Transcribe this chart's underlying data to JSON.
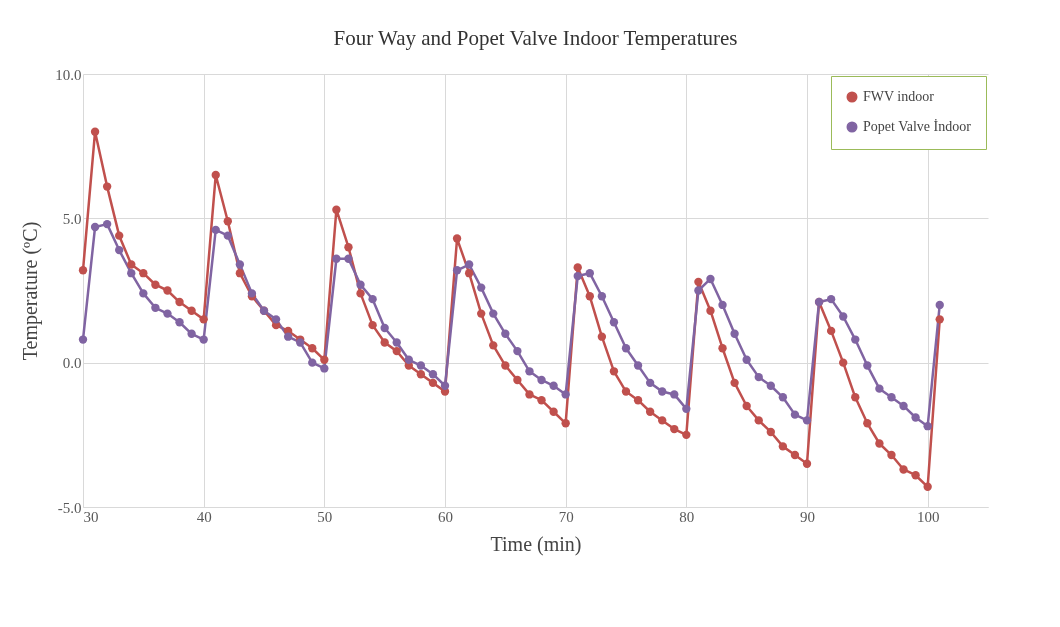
{
  "chart_data": {
    "type": "line",
    "title": "Four Way and Popet Valve  Indoor Temperatures",
    "xlabel": "Time (min)",
    "ylabel": "Temperature (ºC)",
    "x": [
      30,
      31,
      32,
      33,
      34,
      35,
      36,
      37,
      38,
      39,
      40,
      41,
      42,
      43,
      44,
      45,
      46,
      47,
      48,
      49,
      50,
      51,
      52,
      53,
      54,
      55,
      56,
      57,
      58,
      59,
      60,
      61,
      62,
      63,
      64,
      65,
      66,
      67,
      68,
      69,
      70,
      71,
      72,
      73,
      74,
      75,
      76,
      77,
      78,
      79,
      80,
      81,
      82,
      83,
      84,
      85,
      86,
      87,
      88,
      89,
      90,
      91,
      92,
      93,
      94,
      95,
      96,
      97,
      98,
      99,
      100,
      101
    ],
    "series": [
      {
        "name": "FWV indoor",
        "color": "#c0504d",
        "values": [
          3.2,
          8.0,
          6.1,
          4.4,
          3.4,
          3.1,
          2.7,
          2.5,
          2.1,
          1.8,
          1.5,
          6.5,
          4.9,
          3.1,
          2.3,
          1.8,
          1.3,
          1.1,
          0.8,
          0.5,
          0.1,
          5.3,
          4.0,
          2.4,
          1.3,
          0.7,
          0.4,
          -0.1,
          -0.4,
          -0.7,
          -1.0,
          4.3,
          3.1,
          1.7,
          0.6,
          -0.1,
          -0.6,
          -1.1,
          -1.3,
          -1.7,
          -2.1,
          3.3,
          2.3,
          0.9,
          -0.3,
          -1.0,
          -1.3,
          -1.7,
          -2.0,
          -2.3,
          -2.5,
          2.8,
          1.8,
          0.5,
          -0.7,
          -1.5,
          -2.0,
          -2.4,
          -2.9,
          -3.2,
          -3.5,
          2.1,
          1.1,
          0.0,
          -1.2,
          -2.1,
          -2.8,
          -3.2,
          -3.7,
          -3.9,
          -4.3,
          1.5
        ]
      },
      {
        "name": "Popet Valve İndoor",
        "color": "#8064a2",
        "values": [
          0.8,
          4.7,
          4.8,
          3.9,
          3.1,
          2.4,
          1.9,
          1.7,
          1.4,
          1.0,
          0.8,
          4.6,
          4.4,
          3.4,
          2.4,
          1.8,
          1.5,
          0.9,
          0.7,
          0.0,
          -0.2,
          3.6,
          3.6,
          2.7,
          2.2,
          1.2,
          0.7,
          0.1,
          -0.1,
          -0.4,
          -0.8,
          3.2,
          3.4,
          2.6,
          1.7,
          1.0,
          0.4,
          -0.3,
          -0.6,
          -0.8,
          -1.1,
          3.0,
          3.1,
          2.3,
          1.4,
          0.5,
          -0.1,
          -0.7,
          -1.0,
          -1.1,
          -1.6,
          2.5,
          2.9,
          2.0,
          1.0,
          0.1,
          -0.5,
          -0.8,
          -1.2,
          -1.8,
          -2.0,
          2.1,
          2.2,
          1.6,
          0.8,
          -0.1,
          -0.9,
          -1.2,
          -1.5,
          -1.9,
          -2.2,
          2.0
        ]
      }
    ],
    "xlim": [
      30,
      105
    ],
    "xticks": [
      30,
      40,
      50,
      60,
      70,
      80,
      90,
      100
    ],
    "ylim": [
      -5,
      10
    ],
    "yticks": [
      {
        "value": -5,
        "label": "-5.0"
      },
      {
        "value": 0,
        "label": "0.0"
      },
      {
        "value": 5,
        "label": "5.0"
      },
      {
        "value": 10,
        "label": "10.0"
      }
    ],
    "grid": true,
    "legend": "top right",
    "marker": "circle",
    "line_style": "solid"
  }
}
